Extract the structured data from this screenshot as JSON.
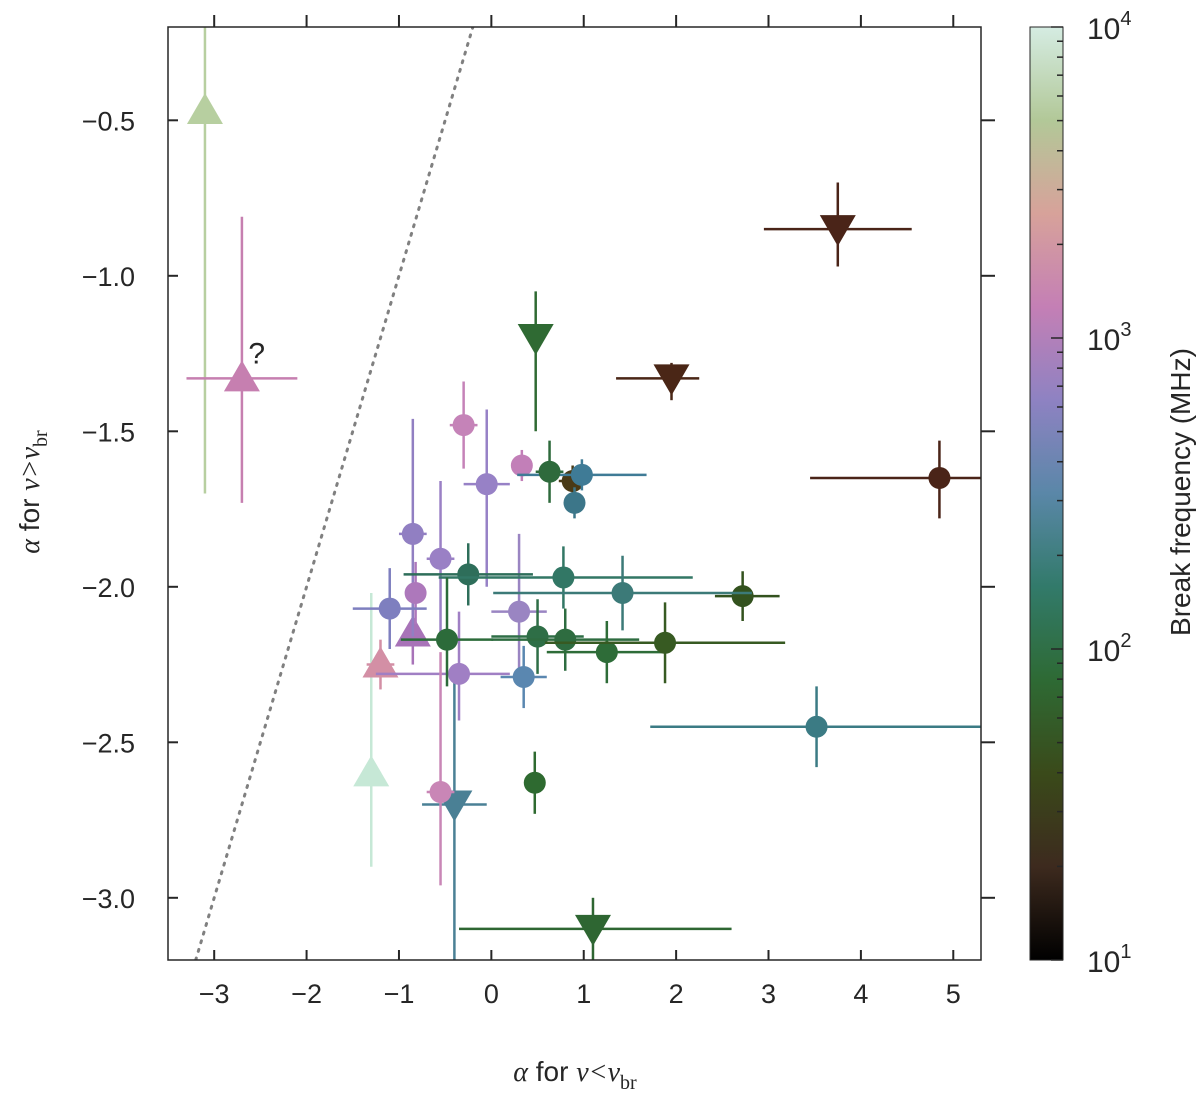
{
  "chart_data": {
    "type": "scatter",
    "xlabel": {
      "greek": "α",
      "for": " for ",
      "nu": "ν",
      "op": "<",
      "nu2": "ν",
      "sub": "br"
    },
    "ylabel": {
      "greek": "α",
      "for": " for ",
      "nu": "ν",
      "op": ">",
      "nu2": "ν",
      "sub": "br"
    },
    "xlim": [
      -3.5,
      5.3
    ],
    "ylim": [
      -3.2,
      -0.2
    ],
    "xticks": [
      -3,
      -2,
      -1,
      0,
      1,
      2,
      3,
      4,
      5
    ],
    "xtick_labels": [
      "−3",
      "−2",
      "−1",
      "0",
      "1",
      "2",
      "3",
      "4",
      "5"
    ],
    "yticks": [
      -0.5,
      -1.0,
      -1.5,
      -2.0,
      -2.5,
      -3.0
    ],
    "ytick_labels": [
      "−0.5",
      "−1.0",
      "−1.5",
      "−2.0",
      "−2.5",
      "−3.0"
    ],
    "grid": false,
    "reference_line": {
      "style": "dotted",
      "color": "#808080",
      "points": [
        [
          -3.2,
          -3.2
        ],
        [
          -0.2,
          -0.2
        ]
      ]
    },
    "annotations": [
      {
        "text": "?",
        "x": -2.5,
        "y": -1.25
      }
    ],
    "colorbar": {
      "label": "Break frequency (MHz)",
      "scale": "log",
      "range_mhz": [
        10,
        10000
      ],
      "tick_labels": [
        {
          "base": "10",
          "exp": "1",
          "value": 10
        },
        {
          "base": "10",
          "exp": "2",
          "value": 100
        },
        {
          "base": "10",
          "exp": "3",
          "value": 1000
        },
        {
          "base": "10",
          "exp": "4",
          "value": 10000
        }
      ],
      "gradient_stops": [
        "#000000",
        "#3d2a1e",
        "#3a4a1a",
        "#2e6a34",
        "#327a6a",
        "#5a87a8",
        "#8e82c2",
        "#c47fb5",
        "#d7a29a",
        "#b2c898",
        "#d5ece2"
      ]
    },
    "points": [
      {
        "x": -3.1,
        "y": -0.47,
        "marker": "up",
        "color": "#b7cfa0",
        "xerr": [
          0,
          0
        ],
        "yerr": [
          1.23,
          0.3
        ]
      },
      {
        "x": -2.7,
        "y": -1.33,
        "marker": "up",
        "color": "#c67fb0",
        "xerr": [
          0.6,
          0.6
        ],
        "yerr": [
          0.4,
          0.52
        ]
      },
      {
        "x": -1.3,
        "y": -2.6,
        "marker": "up",
        "color": "#c6e8d6",
        "xerr": [
          0,
          0
        ],
        "yerr": [
          0.3,
          0.58
        ]
      },
      {
        "x": -1.2,
        "y": -2.25,
        "marker": "up",
        "color": "#d38fa5",
        "xerr": [
          0.15,
          0.15
        ],
        "yerr": [
          0.08,
          0.08
        ]
      },
      {
        "x": -0.85,
        "y": -2.15,
        "marker": "up",
        "color": "#a873b8",
        "xerr": [
          0.1,
          0.1
        ],
        "yerr": [
          0.1,
          0.1
        ]
      },
      {
        "x": -0.4,
        "y": -2.7,
        "marker": "down",
        "color": "#4a8095",
        "xerr": [
          0.35,
          0.35
        ],
        "yerr": [
          0.6,
          0.45
        ]
      },
      {
        "x": 0.48,
        "y": -1.2,
        "marker": "down",
        "color": "#2f6a33",
        "xerr": [
          0,
          0
        ],
        "yerr": [
          0.3,
          0.15
        ]
      },
      {
        "x": 1.1,
        "y": -3.1,
        "marker": "down",
        "color": "#2e6632",
        "xerr": [
          1.45,
          1.5
        ],
        "yerr": [
          0.1,
          0.1
        ]
      },
      {
        "x": 1.95,
        "y": -1.33,
        "marker": "down",
        "color": "#4a2616",
        "xerr": [
          0.6,
          0.3
        ],
        "yerr": [
          0.07,
          0.05
        ]
      },
      {
        "x": 3.75,
        "y": -0.85,
        "marker": "down",
        "color": "#4a2418",
        "xerr": [
          0.8,
          0.8
        ],
        "yerr": [
          0.12,
          0.15
        ]
      },
      {
        "x": 4.85,
        "y": -1.65,
        "marker": "circle",
        "color": "#4a2418",
        "xerr": [
          1.4,
          0.5
        ],
        "yerr": [
          0.13,
          0.12
        ]
      },
      {
        "x": 0.88,
        "y": -1.66,
        "marker": "circle",
        "color": "#4a3a16",
        "xerr": [
          0.15,
          0.15
        ],
        "yerr": [
          0.05,
          0.05
        ]
      },
      {
        "x": 2.72,
        "y": -2.03,
        "marker": "circle",
        "color": "#33521e",
        "xerr": [
          0.3,
          0.4
        ],
        "yerr": [
          0.08,
          0.08
        ]
      },
      {
        "x": -0.3,
        "y": -1.48,
        "marker": "circle",
        "color": "#c583b8",
        "xerr": [
          0.15,
          0.15
        ],
        "yerr": [
          0.14,
          0.14
        ]
      },
      {
        "x": 0.33,
        "y": -1.61,
        "marker": "circle",
        "color": "#c27fb8",
        "xerr": [
          0.1,
          0.1
        ],
        "yerr": [
          0.05,
          0.05
        ]
      },
      {
        "x": -0.05,
        "y": -1.67,
        "marker": "circle",
        "color": "#9781c6",
        "xerr": [
          0.25,
          0.25
        ],
        "yerr": [
          0.33,
          0.24
        ]
      },
      {
        "x": -0.85,
        "y": -1.83,
        "marker": "circle",
        "color": "#917fc2",
        "xerr": [
          0.15,
          0.15
        ],
        "yerr": [
          0.33,
          0.37
        ]
      },
      {
        "x": -0.55,
        "y": -1.91,
        "marker": "circle",
        "color": "#9a80c5",
        "xerr": [
          0.15,
          0.15
        ],
        "yerr": [
          0.25,
          0.25
        ]
      },
      {
        "x": -0.82,
        "y": -2.02,
        "marker": "circle",
        "color": "#ad78bb",
        "xerr": [
          0.1,
          0.1
        ],
        "yerr": [
          0.1,
          0.1
        ]
      },
      {
        "x": -1.1,
        "y": -2.07,
        "marker": "circle",
        "color": "#7e7fbf",
        "xerr": [
          0.4,
          0.4
        ],
        "yerr": [
          0.13,
          0.13
        ]
      },
      {
        "x": 0.3,
        "y": -2.08,
        "marker": "circle",
        "color": "#9a85c2",
        "xerr": [
          0.3,
          0.3
        ],
        "yerr": [
          0.2,
          0.25
        ]
      },
      {
        "x": -0.35,
        "y": -2.28,
        "marker": "circle",
        "color": "#a07fc4",
        "xerr": [
          0.9,
          0.55
        ],
        "yerr": [
          0.15,
          0.2
        ]
      },
      {
        "x": -0.55,
        "y": -2.66,
        "marker": "circle",
        "color": "#c986b6",
        "xerr": [
          0.15,
          0.15
        ],
        "yerr": [
          0.3,
          0.45
        ]
      },
      {
        "x": 0.35,
        "y": -2.29,
        "marker": "circle",
        "color": "#5a87b0",
        "xerr": [
          0.25,
          0.25
        ],
        "yerr": [
          0.1,
          0.1
        ]
      },
      {
        "x": 0.98,
        "y": -1.64,
        "marker": "circle",
        "color": "#3f7b96",
        "xerr": [
          0.7,
          0.7
        ],
        "yerr": [
          0.05,
          0.05
        ]
      },
      {
        "x": 0.9,
        "y": -1.73,
        "marker": "circle",
        "color": "#3c7689",
        "xerr": [
          0.1,
          0.1
        ],
        "yerr": [
          0.05,
          0.05
        ]
      },
      {
        "x": 0.63,
        "y": -1.63,
        "marker": "circle",
        "color": "#2e6a3c",
        "xerr": [
          0.15,
          0.15
        ],
        "yerr": [
          0.1,
          0.1
        ]
      },
      {
        "x": -0.25,
        "y": -1.96,
        "marker": "circle",
        "color": "#2e6e5a",
        "xerr": [
          0.7,
          0.7
        ],
        "yerr": [
          0.1,
          0.1
        ]
      },
      {
        "x": 0.78,
        "y": -1.97,
        "marker": "circle",
        "color": "#327765",
        "xerr": [
          1.35,
          1.4
        ],
        "yerr": [
          0.1,
          0.1
        ]
      },
      {
        "x": 1.42,
        "y": -2.02,
        "marker": "circle",
        "color": "#3c7a78",
        "xerr": [
          1.4,
          1.4
        ],
        "yerr": [
          0.12,
          0.12
        ]
      },
      {
        "x": -0.48,
        "y": -2.17,
        "marker": "circle",
        "color": "#2c6b3a",
        "xerr": [
          0.5,
          0.5
        ],
        "yerr": [
          0.15,
          0.2
        ]
      },
      {
        "x": 0.5,
        "y": -2.16,
        "marker": "circle",
        "color": "#2e6e46",
        "xerr": [
          0.5,
          0.5
        ],
        "yerr": [
          0.12,
          0.12
        ]
      },
      {
        "x": 0.8,
        "y": -2.17,
        "marker": "circle",
        "color": "#2e6c40",
        "xerr": [
          0.8,
          0.8
        ],
        "yerr": [
          0.1,
          0.1
        ]
      },
      {
        "x": 1.25,
        "y": -2.21,
        "marker": "circle",
        "color": "#2e6c38",
        "xerr": [
          0.65,
          0.65
        ],
        "yerr": [
          0.1,
          0.1
        ]
      },
      {
        "x": 1.88,
        "y": -2.18,
        "marker": "circle",
        "color": "#375a22",
        "xerr": [
          1.3,
          1.3
        ],
        "yerr": [
          0.13,
          0.13
        ]
      },
      {
        "x": 0.47,
        "y": -2.63,
        "marker": "circle",
        "color": "#2e6a30",
        "xerr": [
          0.1,
          0.1
        ],
        "yerr": [
          0.1,
          0.1
        ]
      },
      {
        "x": 3.52,
        "y": -2.45,
        "marker": "circle",
        "color": "#3b7b84",
        "xerr": [
          1.8,
          1.8
        ],
        "yerr": [
          0.13,
          0.13
        ]
      }
    ]
  }
}
